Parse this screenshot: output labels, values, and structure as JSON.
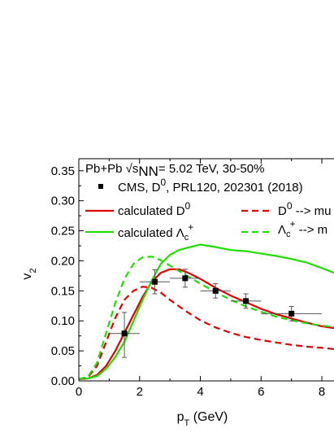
{
  "chart_data": {
    "type": "line",
    "header": "Pb+Pb √sNN= 5.02 TeV, 30-50%",
    "xlabel": "p_T (GeV)",
    "ylabel": "v_2",
    "xlim": [
      0,
      8.4
    ],
    "ylim": [
      0,
      0.37
    ],
    "x_ticks": [
      "0",
      "2",
      "4",
      "6",
      "8"
    ],
    "y_ticks": [
      "0.00",
      "0.05",
      "0.10",
      "0.15",
      "0.20",
      "0.25",
      "0.30",
      "0.35"
    ],
    "series": [
      {
        "name": "CMS, D0, PRL120, 202301 (2018)",
        "legend_label": "CMS, D",
        "legend_super": "0",
        "legend_suffix": ", PRL120, 202301 (2018)",
        "style": "points",
        "color": "#000000",
        "points": [
          {
            "x": 1.5,
            "y": 0.079,
            "xerr": [
              0.5,
              0.5
            ],
            "yerr": [
              0.04,
              0.035
            ]
          },
          {
            "x": 2.5,
            "y": 0.165,
            "xerr": [
              0.5,
              0.5
            ],
            "yerr": [
              0.02,
              0.02
            ]
          },
          {
            "x": 3.5,
            "y": 0.171,
            "xerr": [
              0.5,
              0.5
            ],
            "yerr": [
              0.015,
              0.015
            ]
          },
          {
            "x": 4.5,
            "y": 0.15,
            "xerr": [
              0.5,
              0.5
            ],
            "yerr": [
              0.012,
              0.012
            ]
          },
          {
            "x": 5.5,
            "y": 0.133,
            "xerr": [
              0.5,
              0.5
            ],
            "yerr": [
              0.012,
              0.012
            ]
          },
          {
            "x": 7.0,
            "y": 0.112,
            "xerr": [
              1.0,
              1.0
            ],
            "yerr": [
              0.012,
              0.012
            ]
          }
        ]
      },
      {
        "name": "calculated D0",
        "legend_label": "calculated D",
        "legend_super": "0",
        "style": "solid",
        "color": "#e00000",
        "x": [
          0,
          0.3,
          0.6,
          0.9,
          1.2,
          1.5,
          1.8,
          2.1,
          2.4,
          2.7,
          3.0,
          3.3,
          3.6,
          4.0,
          4.5,
          5.0,
          5.5,
          6.0,
          6.5,
          7.0,
          7.5,
          8.0,
          8.4
        ],
        "y": [
          0.003,
          0.004,
          0.01,
          0.025,
          0.05,
          0.08,
          0.11,
          0.14,
          0.165,
          0.18,
          0.186,
          0.186,
          0.18,
          0.17,
          0.155,
          0.142,
          0.131,
          0.12,
          0.111,
          0.104,
          0.097,
          0.091,
          0.088
        ]
      },
      {
        "name": "calculated Λc+",
        "legend_label": "calculated Λ",
        "legend_sub": "c",
        "legend_super": "+",
        "style": "solid",
        "color": "#22dd00",
        "x": [
          0,
          0.3,
          0.6,
          0.9,
          1.2,
          1.5,
          1.8,
          2.1,
          2.4,
          2.7,
          3.0,
          3.3,
          3.6,
          4.0,
          4.5,
          5.0,
          5.5,
          6.0,
          6.5,
          7.0,
          7.5,
          8.0,
          8.4
        ],
        "y": [
          0.003,
          0.004,
          0.008,
          0.02,
          0.04,
          0.065,
          0.1,
          0.135,
          0.167,
          0.195,
          0.21,
          0.218,
          0.222,
          0.227,
          0.223,
          0.218,
          0.216,
          0.212,
          0.208,
          0.203,
          0.197,
          0.188,
          0.18
        ]
      },
      {
        "name": "D0 --> mu",
        "legend_label": "D",
        "legend_super": "0",
        "legend_suffix": " --> mu",
        "style": "dashed",
        "color": "#e00000",
        "x": [
          0,
          0.3,
          0.6,
          0.9,
          1.2,
          1.5,
          1.8,
          2.1,
          2.4,
          2.7,
          3.0,
          3.5,
          4.0,
          4.5,
          5.0,
          5.5,
          6.0,
          6.5,
          7.0,
          7.5,
          8.0,
          8.4
        ],
        "y": [
          0.003,
          0.006,
          0.025,
          0.065,
          0.105,
          0.135,
          0.15,
          0.157,
          0.155,
          0.147,
          0.135,
          0.117,
          0.101,
          0.089,
          0.08,
          0.073,
          0.068,
          0.064,
          0.06,
          0.057,
          0.055,
          0.053
        ]
      },
      {
        "name": "Λc+ --> mu",
        "legend_label": "Λ",
        "legend_sub": "c",
        "legend_super": "+",
        "legend_suffix": " --> m",
        "style": "dashed",
        "color": "#22dd00",
        "x": [
          0,
          0.3,
          0.6,
          0.9,
          1.2,
          1.5,
          1.8,
          2.1,
          2.4,
          2.7,
          3.0,
          3.5,
          4.0,
          4.5,
          5.0,
          5.5,
          6.0,
          6.5,
          7.0,
          7.5,
          8.0,
          8.4
        ],
        "y": [
          0.003,
          0.007,
          0.03,
          0.08,
          0.13,
          0.17,
          0.195,
          0.206,
          0.207,
          0.201,
          0.192,
          0.177,
          0.162,
          0.148,
          0.135,
          0.124,
          0.115,
          0.107,
          0.101,
          0.096,
          0.092,
          0.09
        ]
      }
    ]
  }
}
